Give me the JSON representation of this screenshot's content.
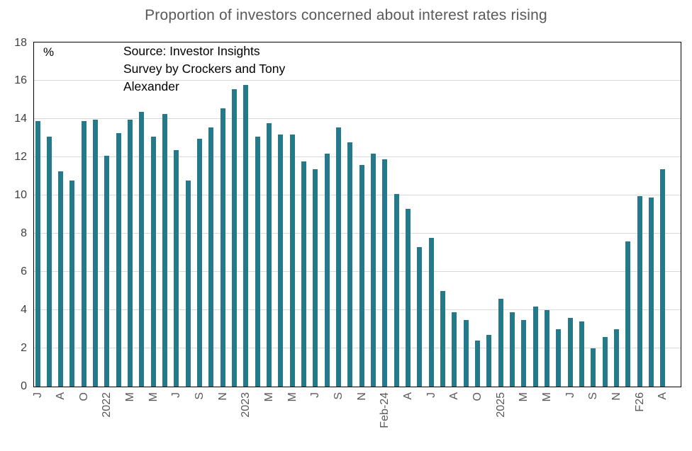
{
  "title": "Proportion of investors concerned about interest rates rising",
  "source_note": {
    "lines": [
      "Source: Investor Insights",
      "Survey by Crockers and Tony",
      "Alexander"
    ]
  },
  "colors": {
    "bar": "#24798a",
    "title_text": "#595959",
    "source_text": "#000000",
    "unit_label_text": "#000000",
    "gridline": "#d9d9d9",
    "axis_border": "#000000",
    "y_tick_text": "#3f3f3f",
    "x_tick_text": "#595959"
  },
  "chart_data": {
    "type": "bar",
    "title": "Proportion of investors concerned about interest rates rising",
    "xlabel": "",
    "ylabel": "%",
    "ylim": [
      0,
      18
    ],
    "yticks": [
      0,
      2,
      4,
      6,
      8,
      10,
      12,
      14,
      16,
      18
    ],
    "grid": "horizontal",
    "legend": "none",
    "categories": [
      "J",
      "",
      "A",
      "",
      "O",
      "",
      "2022",
      "",
      "M",
      "",
      "M",
      "",
      "J",
      "",
      "S",
      "",
      "N",
      "",
      "2023",
      "",
      "M",
      "",
      "M",
      "",
      "J",
      "",
      "S",
      "",
      "N",
      "",
      "Feb-24",
      "",
      "A",
      "",
      "J",
      "",
      "A",
      "",
      "O",
      "",
      "2025",
      "",
      "M",
      "",
      "M",
      "",
      "J",
      "",
      "S",
      "",
      "N",
      "",
      "F26",
      "",
      "A"
    ],
    "values": [
      13.9,
      13.1,
      11.3,
      10.8,
      13.9,
      14.0,
      12.1,
      13.3,
      14.0,
      14.4,
      13.1,
      14.3,
      12.4,
      10.8,
      13.0,
      13.6,
      14.6,
      15.6,
      15.8,
      13.1,
      13.8,
      13.2,
      13.2,
      11.8,
      11.4,
      12.2,
      13.6,
      12.8,
      11.6,
      12.2,
      11.9,
      10.1,
      9.3,
      7.3,
      7.8,
      5.0,
      3.9,
      3.5,
      2.4,
      2.7,
      4.6,
      3.9,
      3.5,
      4.2,
      4.0,
      3.0,
      3.6,
      3.4,
      2.0,
      2.6,
      3.0,
      7.6,
      10.0,
      9.9,
      11.4
    ]
  }
}
